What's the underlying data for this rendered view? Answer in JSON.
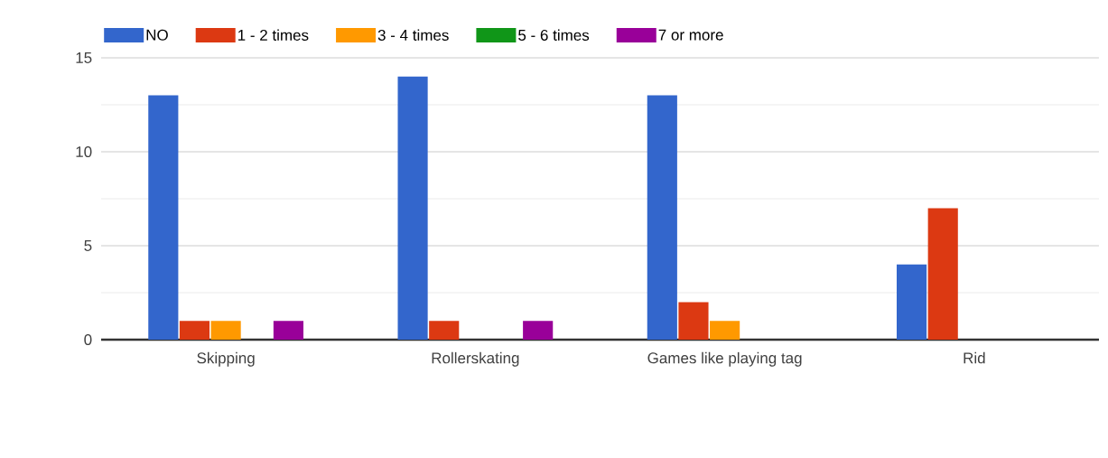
{
  "chart_data": {
    "type": "bar",
    "categories": [
      "Skipping",
      "Rollerskating",
      "Games like playing tag",
      "Rid"
    ],
    "series": [
      {
        "name": "NO",
        "color": "#3366cc",
        "values": [
          13,
          14,
          13,
          4
        ]
      },
      {
        "name": "1 - 2 times",
        "color": "#dc3912",
        "values": [
          1,
          1,
          2,
          7
        ]
      },
      {
        "name": "3 - 4 times",
        "color": "#ff9900",
        "values": [
          1,
          0,
          1,
          null
        ]
      },
      {
        "name": "5 - 6 times",
        "color": "#109618",
        "values": [
          0,
          0,
          0,
          null
        ]
      },
      {
        "name": "7 or more",
        "color": "#990099",
        "values": [
          1,
          1,
          0,
          null
        ]
      }
    ],
    "ylim": [
      0,
      15
    ],
    "yticks": [
      0,
      5,
      10,
      15
    ],
    "grid": "y",
    "legend": "top left"
  }
}
